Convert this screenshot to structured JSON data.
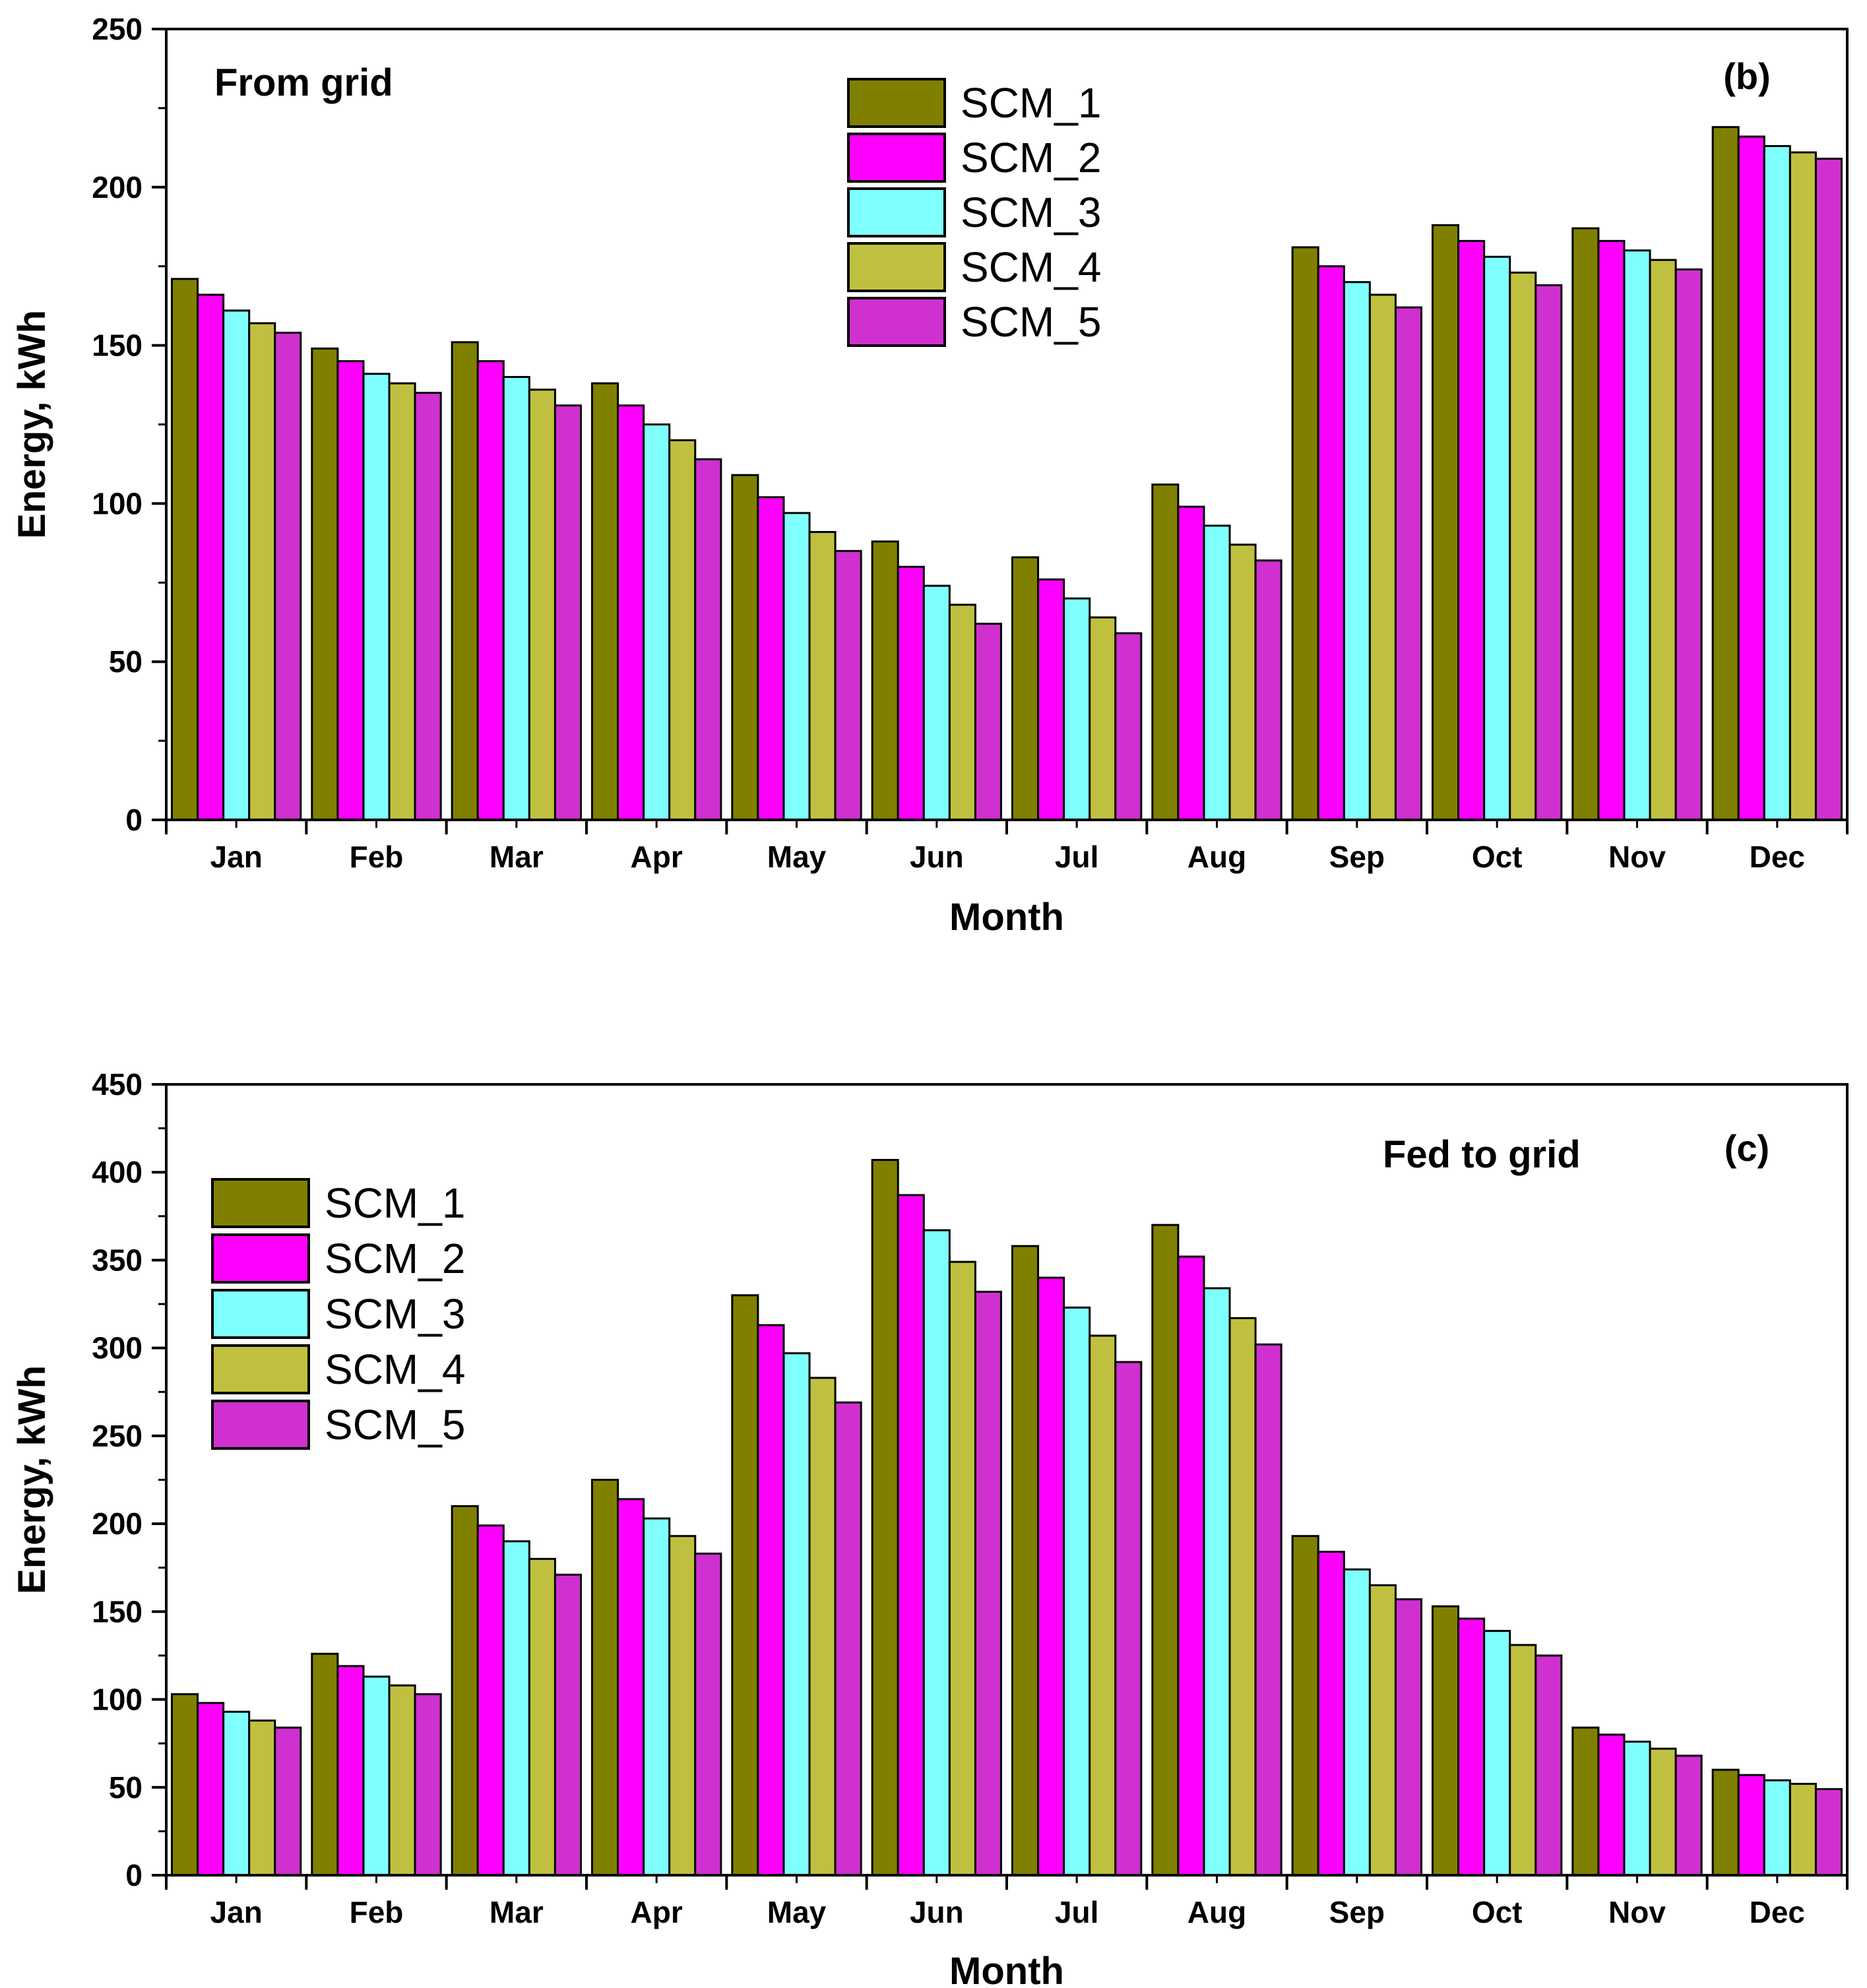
{
  "chart_data": [
    {
      "type": "bar",
      "panel": "(b)",
      "annotation": "From grid",
      "xlabel": "Month",
      "ylabel": "Energy, kWh",
      "ylim": [
        0,
        250
      ],
      "yticks": [
        0,
        50,
        100,
        150,
        200,
        250
      ],
      "grid": false,
      "legend_position": "top-center",
      "categories": [
        "Jan",
        "Feb",
        "Mar",
        "Apr",
        "May",
        "Jun",
        "Jul",
        "Aug",
        "Sep",
        "Oct",
        "Nov",
        "Dec"
      ],
      "series": [
        {
          "name": "SCM_1",
          "color": "#808000",
          "values": [
            171,
            149,
            151,
            138,
            109,
            88,
            83,
            106,
            181,
            188,
            187,
            219
          ]
        },
        {
          "name": "SCM_2",
          "color": "#ff00ff",
          "values": [
            166,
            145,
            145,
            131,
            102,
            80,
            76,
            99,
            175,
            183,
            183,
            216
          ]
        },
        {
          "name": "SCM_3",
          "color": "#80ffff",
          "values": [
            161,
            141,
            140,
            125,
            97,
            74,
            70,
            93,
            170,
            178,
            180,
            213
          ]
        },
        {
          "name": "SCM_4",
          "color": "#c0c040",
          "values": [
            157,
            138,
            136,
            120,
            91,
            68,
            64,
            87,
            166,
            173,
            177,
            211
          ]
        },
        {
          "name": "SCM_5",
          "color": "#d030d0",
          "values": [
            154,
            135,
            131,
            114,
            85,
            62,
            59,
            82,
            162,
            169,
            174,
            209
          ]
        }
      ]
    },
    {
      "type": "bar",
      "panel": "(c)",
      "annotation": "Fed to grid",
      "xlabel": "Month",
      "ylabel": "Energy, kWh",
      "ylim": [
        0,
        450
      ],
      "yticks": [
        0,
        50,
        100,
        150,
        200,
        250,
        300,
        350,
        400,
        450
      ],
      "grid": false,
      "legend_position": "top-left",
      "categories": [
        "Jan",
        "Feb",
        "Mar",
        "Apr",
        "May",
        "Jun",
        "Jul",
        "Aug",
        "Sep",
        "Oct",
        "Nov",
        "Dec"
      ],
      "series": [
        {
          "name": "SCM_1",
          "color": "#808000",
          "values": [
            103,
            126,
            210,
            225,
            330,
            407,
            358,
            370,
            193,
            153,
            84,
            60
          ]
        },
        {
          "name": "SCM_2",
          "color": "#ff00ff",
          "values": [
            98,
            119,
            199,
            214,
            313,
            387,
            340,
            352,
            184,
            146,
            80,
            57
          ]
        },
        {
          "name": "SCM_3",
          "color": "#80ffff",
          "values": [
            93,
            113,
            190,
            203,
            297,
            367,
            323,
            334,
            174,
            139,
            76,
            54
          ]
        },
        {
          "name": "SCM_4",
          "color": "#c0c040",
          "values": [
            88,
            108,
            180,
            193,
            283,
            349,
            307,
            317,
            165,
            131,
            72,
            52
          ]
        },
        {
          "name": "SCM_5",
          "color": "#d030d0",
          "values": [
            84,
            103,
            171,
            183,
            269,
            332,
            292,
            302,
            157,
            125,
            68,
            49
          ]
        }
      ]
    }
  ]
}
